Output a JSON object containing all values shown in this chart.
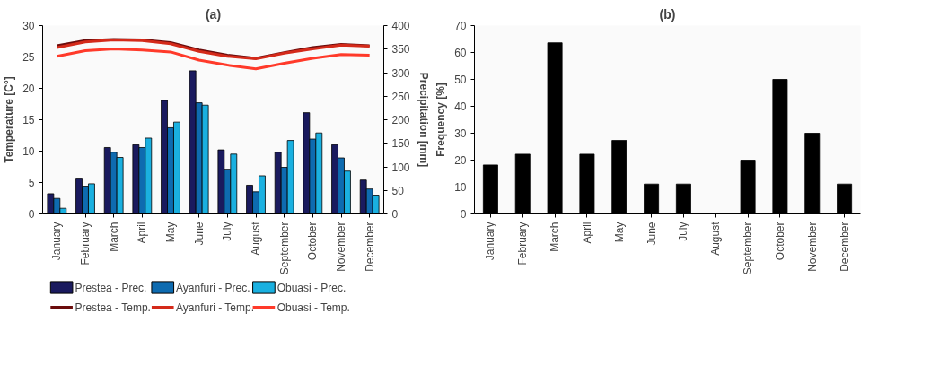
{
  "chart_data": [
    {
      "type": "bar",
      "title": "(a)",
      "ylabel": "Temperature [C°]",
      "y2label": "Precipitation [mm]",
      "categories": [
        "January",
        "February",
        "March",
        "April",
        "May",
        "June",
        "July",
        "August",
        "September",
        "October",
        "November",
        "December"
      ],
      "ylim": [
        0,
        30
      ],
      "yticks": [
        0,
        5,
        10,
        15,
        20,
        25,
        30
      ],
      "y2lim": [
        0,
        400
      ],
      "y2ticks": [
        0,
        50,
        100,
        150,
        200,
        250,
        300,
        350,
        400
      ],
      "grid": false,
      "legend": "bottom",
      "series": [
        {
          "name": "Prestea - Prec.",
          "axis": "y2",
          "color": "#1a1a5e",
          "values": [
            43,
            76,
            141,
            147,
            241,
            304,
            136,
            61,
            131,
            215,
            147,
            72
          ]
        },
        {
          "name": "Ayanfuri - Prec.",
          "axis": "y2",
          "color": "#0e6bb0",
          "values": [
            33,
            59,
            131,
            141,
            183,
            236,
            95,
            47,
            99,
            159,
            119,
            53
          ]
        },
        {
          "name": "Obuasi - Prec.",
          "axis": "y2",
          "color": "#1ab0e0",
          "values": [
            12,
            64,
            120,
            161,
            195,
            231,
            127,
            81,
            156,
            172,
            91,
            40
          ]
        },
        {
          "name": "Prestea - Temp.",
          "type": "line",
          "axis": "y",
          "color": "#6b0c0c",
          "values": [
            26.8,
            27.6,
            27.8,
            27.7,
            27.3,
            26.1,
            25.3,
            24.8,
            25.7,
            26.5,
            27.0,
            26.8
          ]
        },
        {
          "name": "Ayanfuri - Temp.",
          "type": "line",
          "axis": "y",
          "color": "#d42a1a",
          "values": [
            26.5,
            27.4,
            27.7,
            27.6,
            27.1,
            25.9,
            25.1,
            24.7,
            25.6,
            26.3,
            26.9,
            26.7
          ]
        },
        {
          "name": "Obuasi - Temp.",
          "type": "line",
          "axis": "y",
          "color": "#ff3a2a",
          "values": [
            25.1,
            26.0,
            26.3,
            26.1,
            25.8,
            24.5,
            23.7,
            23.1,
            24.0,
            24.8,
            25.4,
            25.3
          ]
        }
      ]
    },
    {
      "type": "bar",
      "title": "(b)",
      "ylabel": "Frequency [%]",
      "categories": [
        "January",
        "February",
        "March",
        "April",
        "May",
        "June",
        "July",
        "August",
        "September",
        "October",
        "November",
        "December"
      ],
      "ylim": [
        0,
        70
      ],
      "yticks": [
        0,
        10,
        20,
        30,
        40,
        50,
        60,
        70
      ],
      "grid": false,
      "series": [
        {
          "color": "#000000",
          "values": [
            18.2,
            22.2,
            63.6,
            22.2,
            27.3,
            11.1,
            11.1,
            0,
            20,
            50,
            30,
            11.1
          ]
        }
      ]
    }
  ]
}
